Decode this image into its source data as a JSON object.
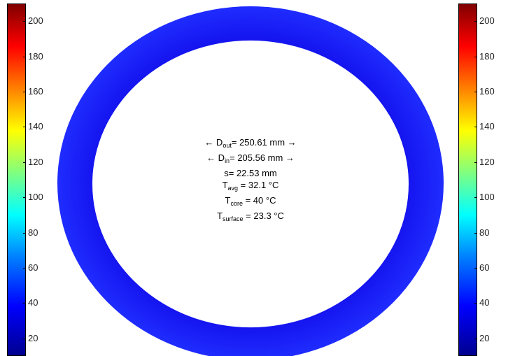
{
  "chart_data": {
    "type": "heatmap",
    "title": "",
    "colorbar_ticks": [
      20,
      40,
      60,
      80,
      100,
      120,
      140,
      160,
      180,
      200
    ],
    "colorbar_range": [
      10,
      210
    ],
    "colormap": "jet",
    "ring_color": "#1a1aff",
    "annotations": {
      "d_out": {
        "prefix": "← D",
        "sub": "out",
        "text": "= 250.61 mm →"
      },
      "d_in": {
        "prefix": "← D",
        "sub": "in",
        "text": "= 205.56 mm →"
      },
      "s": {
        "text": "s= 22.53 mm"
      },
      "t_avg": {
        "prefix": "T",
        "sub": "avg",
        "text": " = 32.1 °C"
      },
      "t_core": {
        "prefix": "T",
        "sub": "core",
        "text": " = 40 °C"
      },
      "t_surface": {
        "prefix": "T",
        "sub": "surface",
        "text": " = 23.3 °C"
      }
    },
    "values": {
      "D_out_mm": 250.61,
      "D_in_mm": 205.56,
      "s_mm": 22.53,
      "T_avg_C": 32.1,
      "T_core_C": 40,
      "T_surface_C": 23.3
    }
  }
}
